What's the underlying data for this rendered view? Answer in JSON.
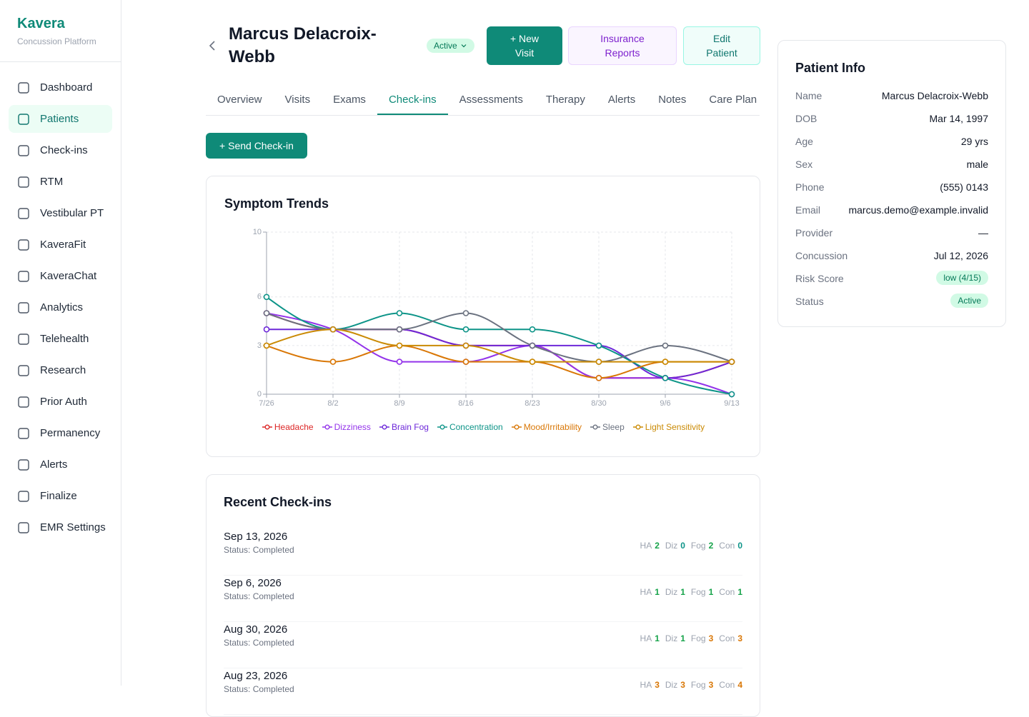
{
  "sidebar": {
    "brand": "Kavera",
    "tagline": "Concussion Platform",
    "nav": [
      "Dashboard",
      "Patients",
      "Check-ins",
      "RTM",
      "Vestibular PT",
      "KaveraFit",
      "KaveraChat",
      "Analytics",
      "Telehealth",
      "Research",
      "Prior Auth",
      "Permanency",
      "Alerts",
      "Finalize",
      "EMR Settings"
    ]
  },
  "header": {
    "patient_name": "Marcus Delacroix-Webb",
    "status": "Active",
    "buttons": [
      "+ New Visit",
      "Insurance Reports",
      "Edit Patient"
    ]
  },
  "tabs": [
    "Overview",
    "Visits",
    "Exams",
    "Check-ins",
    "Assessments",
    "Therapy",
    "Alerts",
    "Notes",
    "Care Plan"
  ],
  "send_button": "+ Send Check-in",
  "chart_data": {
    "type": "line",
    "title": "Symptom Trends",
    "smooth": true,
    "grid": true,
    "categories": [
      "7/26",
      "8/2",
      "8/9",
      "8/16",
      "8/23",
      "8/30",
      "9/6",
      "9/13"
    ],
    "ylim": [
      0,
      10
    ],
    "yticks": [
      0,
      3,
      6,
      10
    ],
    "series": [
      {
        "name": "Headache",
        "color": "#dc2626",
        "values": [
          5,
          4,
          4,
          3,
          3,
          1,
          1,
          2
        ]
      },
      {
        "name": "Dizziness",
        "color": "#9333ea",
        "values": [
          5,
          4,
          2,
          2,
          3,
          1,
          1,
          0
        ]
      },
      {
        "name": "Brain Fog",
        "color": "#6d28d9",
        "values": [
          4,
          4,
          4,
          3,
          3,
          3,
          1,
          2
        ]
      },
      {
        "name": "Concentration",
        "color": "#0d9488",
        "values": [
          6,
          4,
          5,
          4,
          4,
          3,
          1,
          0
        ]
      },
      {
        "name": "Mood/Irritability",
        "color": "#d97706",
        "values": [
          3,
          2,
          3,
          2,
          2,
          1,
          2,
          2
        ]
      },
      {
        "name": "Sleep",
        "color": "#6b7280",
        "values": [
          5,
          4,
          4,
          5,
          3,
          2,
          3,
          2
        ]
      },
      {
        "name": "Light Sensitivity",
        "color": "#ca8a04",
        "values": [
          3,
          4,
          3,
          3,
          2,
          2,
          2,
          2
        ]
      }
    ]
  },
  "patient_info": {
    "title": "Patient Info",
    "rows": [
      {
        "label": "Name",
        "value": "Marcus Delacroix-Webb"
      },
      {
        "label": "DOB",
        "value": "Mar 14, 1997"
      },
      {
        "label": "Age",
        "value": "29 yrs"
      },
      {
        "label": "Sex",
        "value": "male"
      },
      {
        "label": "Phone",
        "value": "(555) 0143"
      },
      {
        "label": "Email",
        "value": "marcus.demo@example.invalid"
      },
      {
        "label": "Provider",
        "value": "—"
      },
      {
        "label": "Concussion",
        "value": "Jul 12, 2026"
      },
      {
        "label": "Risk Score",
        "value": "low (4/15)",
        "badge": true
      },
      {
        "label": "Status",
        "value": "Active",
        "badge": true
      }
    ]
  },
  "recent_checkins": {
    "title": "Recent Check-ins",
    "items": [
      {
        "date": "Sep 13, 2026",
        "status": "Status: Completed",
        "scores": [
          {
            "label": "HA",
            "value": 2
          },
          {
            "label": "Diz",
            "value": 0
          },
          {
            "label": "Fog",
            "value": 2
          },
          {
            "label": "Con",
            "value": 0
          }
        ]
      },
      {
        "date": "Sep 6, 2026",
        "status": "Status: Completed",
        "scores": [
          {
            "label": "HA",
            "value": 1
          },
          {
            "label": "Diz",
            "value": 1
          },
          {
            "label": "Fog",
            "value": 1
          },
          {
            "label": "Con",
            "value": 1
          }
        ]
      },
      {
        "date": "Aug 30, 2026",
        "status": "Status: Completed",
        "scores": [
          {
            "label": "HA",
            "value": 1
          },
          {
            "label": "Diz",
            "value": 1
          },
          {
            "label": "Fog",
            "value": 3
          },
          {
            "label": "Con",
            "value": 3
          }
        ]
      },
      {
        "date": "Aug 23, 2026",
        "status": "Status: Completed",
        "scores": [
          {
            "label": "HA",
            "value": 3
          },
          {
            "label": "Diz",
            "value": 3
          },
          {
            "label": "Fog",
            "value": 3
          },
          {
            "label": "Con",
            "value": 4
          }
        ]
      }
    ]
  }
}
